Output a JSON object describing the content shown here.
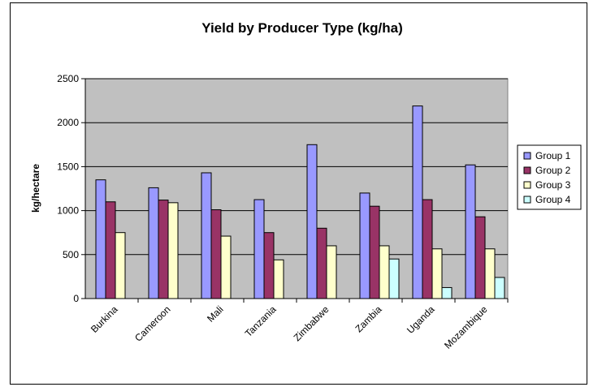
{
  "chart_data": {
    "type": "bar",
    "title": "Yield by Producer Type (kg/ha)",
    "xlabel": "",
    "ylabel": "kg/hectare",
    "ylim": [
      0,
      2500
    ],
    "yticks": [
      0,
      500,
      1000,
      1500,
      2000,
      2500
    ],
    "grid": true,
    "legend_position": "right",
    "categories": [
      "Burkina",
      "Cameroon",
      "Mali",
      "Tanzania",
      "Zimbabwe",
      "Zambia",
      "Uganda",
      "Mozambique"
    ],
    "series": [
      {
        "name": "Group 1",
        "color": "#9999FF",
        "values": [
          1350,
          1260,
          1430,
          1125,
          1750,
          1200,
          2190,
          1520
        ]
      },
      {
        "name": "Group 2",
        "color": "#993366",
        "values": [
          1100,
          1120,
          1010,
          750,
          800,
          1050,
          1125,
          930
        ]
      },
      {
        "name": "Group 3",
        "color": "#FFFFCC",
        "values": [
          750,
          1090,
          710,
          440,
          600,
          600,
          565,
          565
        ]
      },
      {
        "name": "Group 4",
        "color": "#CCFFFF",
        "values": [
          null,
          null,
          null,
          null,
          null,
          450,
          125,
          240
        ]
      }
    ],
    "plot_background": "#C0C0C0"
  }
}
